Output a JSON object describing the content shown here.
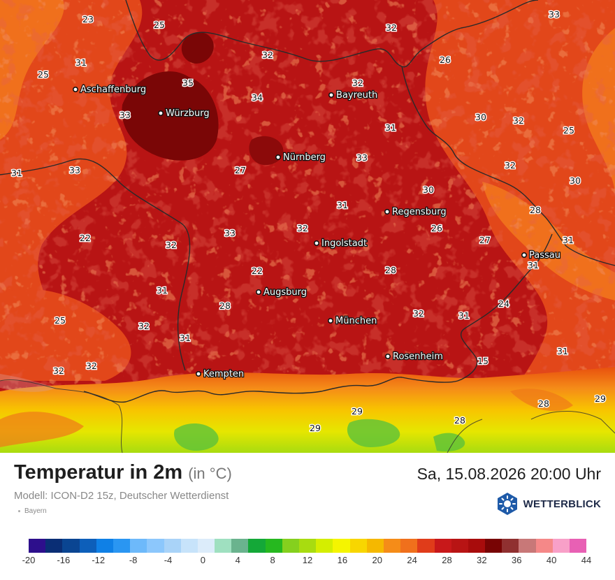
{
  "header": {
    "title": "Temperatur in 2m",
    "unit": "(in °C)",
    "datetime": "Sa, 15.08.2026 20:00 Uhr",
    "model": "Modell: ICON-D2 15z, Deutscher Wetterdienst",
    "region": "Bayern"
  },
  "logo": {
    "text": "WETTERBLICK",
    "icon": "weather-sun-icon",
    "color": "#1e5aa8"
  },
  "cities": [
    {
      "name": "Aschaffenburg"
    },
    {
      "name": "Würzburg"
    },
    {
      "name": "Bayreuth"
    },
    {
      "name": "Nürnberg"
    },
    {
      "name": "Regensburg"
    },
    {
      "name": "Ingolstadt"
    },
    {
      "name": "Passau"
    },
    {
      "name": "Augsburg"
    },
    {
      "name": "München"
    },
    {
      "name": "Rosenheim"
    },
    {
      "name": "Kempten"
    }
  ],
  "temperature_labels": [
    "23",
    "25",
    "33",
    "32",
    "31",
    "25",
    "35",
    "32",
    "26",
    "32",
    "34",
    "33",
    "31",
    "30",
    "32",
    "25",
    "31",
    "33",
    "33",
    "27",
    "32",
    "30",
    "30",
    "31",
    "28",
    "22",
    "33",
    "32",
    "26",
    "32",
    "27",
    "31",
    "22",
    "28",
    "31",
    "31",
    "28",
    "24",
    "25",
    "32",
    "32",
    "31",
    "31",
    "31",
    "32",
    "32",
    "15",
    "28",
    "29",
    "29",
    "29",
    "28"
  ],
  "legend": {
    "colors": [
      "#2d0f8c",
      "#0a2e75",
      "#0a4592",
      "#0d5fba",
      "#0f80e6",
      "#2a96f2",
      "#6db9fa",
      "#8cc7fc",
      "#a9d3f8",
      "#c7e3fa",
      "#dcecfa",
      "#9fe0c0",
      "#6ab38e",
      "#14a838",
      "#26b81f",
      "#85d01e",
      "#a8dc10",
      "#d4ee00",
      "#f5f500",
      "#f8d600",
      "#f5b800",
      "#f58c18",
      "#f0701c",
      "#e03c1a",
      "#c8181a",
      "#b81414",
      "#a80c0c",
      "#780404",
      "#903030",
      "#c87878",
      "#f58888",
      "#f8a0c8",
      "#e860b4"
    ],
    "ticks": [
      "-20",
      "-16",
      "-12",
      "-8",
      "-4",
      "0",
      "4",
      "8",
      "12",
      "16",
      "20",
      "24",
      "28",
      "32",
      "36",
      "40",
      "44"
    ]
  }
}
